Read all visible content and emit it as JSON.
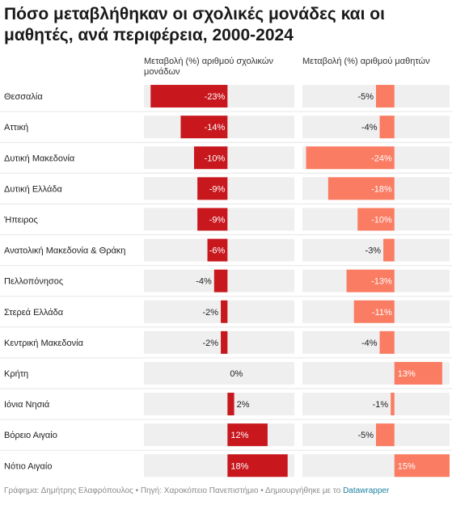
{
  "title": "Πόσο μεταβλήθηκαν οι σχολικές μονάδες και οι μαθητές, ανά περιφέρεια, 2000-2024",
  "chart_data": {
    "type": "bar",
    "title": "Πόσο μεταβλήθηκαν οι σχολικές μονάδες και οι μαθητές, ανά περιφέρεια, 2000-2024",
    "categories": [
      "Θεσσαλία",
      "Αττική",
      "Δυτική Μακεδονία",
      "Δυτική Ελλάδα",
      "Ήπειρος",
      "Ανατολική Μακεδονία & Θράκη",
      "Πελλοπόνησος",
      "Στερεά Ελλάδα",
      "Κεντρική Μακεδονία",
      "Κρήτη",
      "Ιόνια Νησιά",
      "Βόρειο Αιγαίο",
      "Νότιο Αιγαίο"
    ],
    "series": [
      {
        "name": "Μεταβολή (%) αριθμού σχολικών μονάδων",
        "values": [
          -23,
          -14,
          -10,
          -9,
          -9,
          -6,
          -4,
          -2,
          -2,
          0,
          2,
          12,
          18
        ],
        "labels": [
          "-23%",
          "-14%",
          "-10%",
          "-9%",
          "-9%",
          "-6%",
          "-4%",
          "-2%",
          "-2%",
          "0%",
          "2%",
          "12%",
          "18%"
        ],
        "color": "#c8181e",
        "range": [
          -25,
          20
        ]
      },
      {
        "name": "Μεταβολή (%) αριθμού μαθητών",
        "values": [
          -5,
          -4,
          -24,
          -18,
          -10,
          -3,
          -13,
          -11,
          -4,
          13,
          -1,
          -5,
          15
        ],
        "labels": [
          "-5%",
          "-4%",
          "-24%",
          "-18%",
          "-10%",
          "-3%",
          "-13%",
          "-11%",
          "-4%",
          "13%",
          "-1%",
          "-5%",
          "15%"
        ],
        "color": "#fa7c63",
        "range": [
          -25,
          15
        ]
      }
    ],
    "xlabel": "",
    "ylabel": "",
    "grid": false,
    "background_color": "#efefef"
  },
  "footer": {
    "credit": "Γράφημα: Δημήτρης Ελαφρόπουλος • Πηγή: Χαροκόπειο Πανεπιστήμιο • Δημιουργήθηκε με το ",
    "tool": "Datawrapper"
  }
}
